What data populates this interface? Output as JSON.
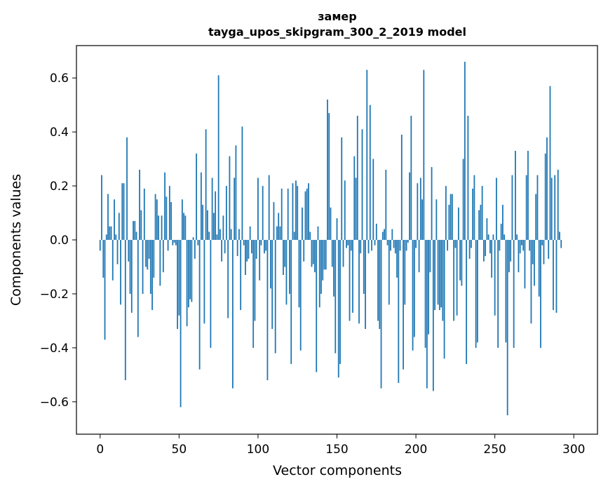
{
  "colors": {
    "bar": "#1f77b4",
    "axis": "#000000",
    "background": "#ffffff"
  },
  "chart_data": {
    "type": "bar",
    "title": "замер",
    "subtitle": "tayga_upos_skipgram_300_2_2019 model",
    "xlabel": "Vector components",
    "ylabel": "Components values",
    "xlim": [
      -15,
      315
    ],
    "ylim": [
      -0.72,
      0.72
    ],
    "xticks": [
      0,
      50,
      100,
      150,
      200,
      250,
      300
    ],
    "yticks": [
      -0.6,
      -0.4,
      -0.2,
      0.0,
      0.2,
      0.4,
      0.6
    ],
    "xtick_labels": [
      "0",
      "50",
      "100",
      "150",
      "200",
      "250",
      "300"
    ],
    "ytick_labels": [
      "−0.6",
      "−0.4",
      "−0.2",
      "0.0",
      "0.2",
      "0.4",
      "0.6"
    ],
    "grid": false,
    "legend": "none",
    "x_start": 0,
    "values": [
      -0.04,
      0.24,
      -0.14,
      -0.37,
      0.02,
      0.17,
      0.05,
      0.05,
      -0.15,
      0.15,
      0.02,
      -0.09,
      0.1,
      -0.24,
      0.21,
      0.21,
      -0.52,
      0.38,
      -0.08,
      -0.2,
      -0.27,
      0.07,
      0.07,
      0.03,
      -0.36,
      0.26,
      0.11,
      -0.2,
      0.19,
      -0.1,
      -0.11,
      -0.07,
      -0.2,
      -0.26,
      -0.14,
      0.17,
      0.15,
      0.09,
      -0.17,
      0.09,
      -0.12,
      0.25,
      0.16,
      -0.04,
      0.2,
      0.14,
      -0.02,
      -0.01,
      -0.02,
      -0.33,
      -0.28,
      -0.62,
      0.15,
      0.1,
      0.09,
      -0.32,
      -0.25,
      -0.22,
      -0.23,
      0.01,
      -0.07,
      0.32,
      -0.02,
      -0.48,
      0.25,
      0.13,
      -0.31,
      0.41,
      0.11,
      0.03,
      -0.4,
      0.23,
      0.1,
      0.18,
      0.02,
      0.61,
      0.04,
      -0.08,
      0.09,
      -0.05,
      0.2,
      -0.29,
      0.31,
      0.04,
      -0.55,
      0.23,
      0.35,
      -0.06,
      0.04,
      -0.26,
      0.42,
      -0.02,
      -0.13,
      -0.08,
      -0.07,
      0.05,
      -0.05,
      -0.4,
      -0.3,
      -0.07,
      0.23,
      -0.15,
      -0.02,
      0.2,
      -0.05,
      -0.04,
      -0.52,
      0.24,
      -0.18,
      -0.33,
      0.14,
      -0.42,
      0.05,
      0.1,
      0.05,
      0.19,
      -0.13,
      -0.1,
      -0.24,
      0.19,
      -0.2,
      -0.46,
      0.21,
      0.03,
      0.22,
      0.2,
      -0.25,
      -0.41,
      0.12,
      -0.08,
      0.18,
      0.19,
      0.21,
      0.03,
      -0.1,
      -0.09,
      -0.12,
      -0.49,
      0.05,
      -0.25,
      -0.2,
      -0.15,
      -0.11,
      -0.11,
      0.52,
      0.47,
      0.12,
      -0.1,
      -0.21,
      -0.42,
      0.08,
      -0.51,
      -0.46,
      0.38,
      -0.1,
      0.22,
      -0.03,
      -0.02,
      -0.3,
      -0.04,
      -0.27,
      0.31,
      0.23,
      0.46,
      -0.31,
      -0.05,
      0.41,
      -0.2,
      -0.33,
      0.63,
      -0.05,
      0.5,
      -0.04,
      0.3,
      -0.02,
      0.06,
      -0.3,
      -0.33,
      -0.55,
      0.03,
      0.04,
      0.26,
      -0.02,
      -0.24,
      -0.04,
      0.04,
      -0.03,
      -0.05,
      -0.14,
      -0.53,
      -0.04,
      0.39,
      -0.48,
      -0.24,
      -0.04,
      -0.01,
      0.25,
      0.46,
      -0.41,
      -0.36,
      -0.03,
      0.21,
      -0.12,
      0.23,
      0.15,
      0.63,
      -0.4,
      -0.55,
      -0.35,
      -0.12,
      0.27,
      -0.56,
      -0.26,
      0.15,
      -0.24,
      -0.26,
      -0.25,
      -0.3,
      -0.44,
      0.2,
      -0.04,
      0.13,
      0.17,
      0.17,
      -0.3,
      -0.03,
      -0.28,
      0.12,
      -0.15,
      -0.17,
      0.3,
      0.66,
      -0.46,
      0.46,
      -0.07,
      -0.03,
      0.19,
      0.24,
      -0.4,
      -0.38,
      0.11,
      0.13,
      0.2,
      -0.08,
      -0.06,
      0.08,
      0.02,
      -0.05,
      -0.14,
      0.02,
      -0.28,
      0.23,
      -0.4,
      -0.04,
      0.06,
      0.13,
      0.02,
      -0.38,
      -0.65,
      -0.12,
      -0.08,
      0.24,
      -0.4,
      0.33,
      0.02,
      -0.12,
      -0.05,
      -0.02,
      -0.04,
      -0.18,
      0.24,
      0.33,
      -0.04,
      -0.31,
      -0.09,
      -0.17,
      0.17,
      0.24,
      -0.21,
      -0.4,
      -0.02,
      -0.09,
      0.32,
      0.38,
      -0.07,
      0.57,
      0.23,
      -0.26,
      0.24,
      -0.27,
      0.26,
      0.03,
      -0.03
    ]
  }
}
